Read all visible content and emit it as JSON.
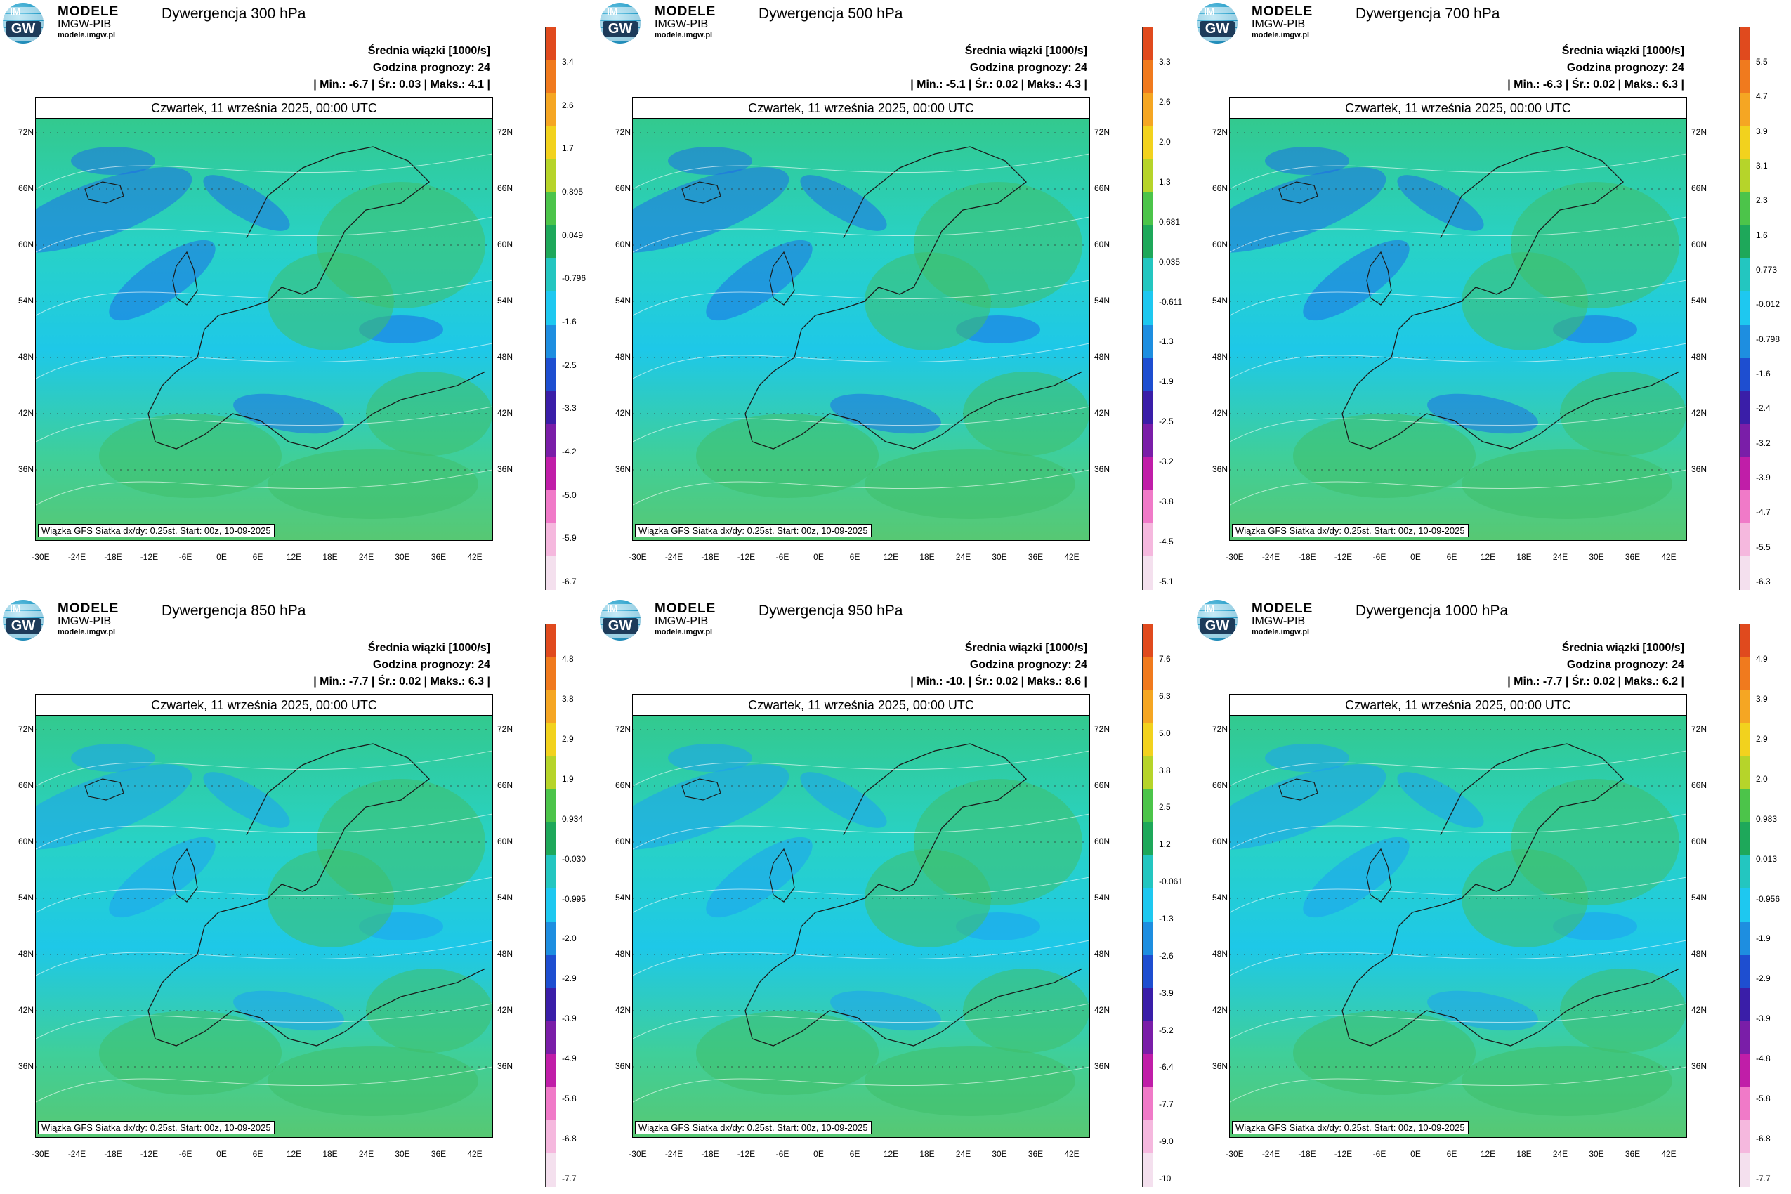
{
  "logo": {
    "line1": "MODELE",
    "line2": "IMGW-PIB",
    "line3": "modele.imgw.pl",
    "badge_top": "IM",
    "badge_bottom": "GW"
  },
  "common": {
    "subtitle": "Średnia wiązki [1000/s]",
    "forecast_hour": "Godzina prognozy: 24",
    "date": "Czwartek, 11 września 2025, 00:00 UTC",
    "footer": "Wiązka GFS Siatka dx/dy: 0.25st. Start: 00z, 10-09-2025",
    "lat_labels": [
      "72N",
      "66N",
      "60N",
      "54N",
      "48N",
      "42N",
      "36N"
    ],
    "lon_labels": [
      "-30E",
      "-24E",
      "-18E",
      "-12E",
      "-6E",
      "0E",
      "6E",
      "12E",
      "18E",
      "24E",
      "30E",
      "36E",
      "42E"
    ]
  },
  "chart_data": [
    {
      "type": "heatmap",
      "title": "Dywergencja 300 hPa",
      "stats": "| Min.: -6.7 | Śr.: 0.03 | Maks.: 4.1 |",
      "colorbar": [
        "3.4",
        "2.6",
        "1.7",
        "0.895",
        "0.049",
        "-0.796",
        "-1.6",
        "-2.5",
        "-3.3",
        "-4.2",
        "-5.0",
        "-5.9",
        "-6.7"
      ]
    },
    {
      "type": "heatmap",
      "title": "Dywergencja 500 hPa",
      "stats": "| Min.: -5.1 | Śr.: 0.02 | Maks.: 4.3 |",
      "colorbar": [
        "3.3",
        "2.6",
        "2.0",
        "1.3",
        "0.681",
        "0.035",
        "-0.611",
        "-1.3",
        "-1.9",
        "-2.5",
        "-3.2",
        "-3.8",
        "-4.5",
        "-5.1"
      ]
    },
    {
      "type": "heatmap",
      "title": "Dywergencja 700 hPa",
      "stats": "| Min.: -6.3 | Śr.: 0.02 | Maks.: 6.3 |",
      "colorbar": [
        "5.5",
        "4.7",
        "3.9",
        "3.1",
        "2.3",
        "1.6",
        "0.773",
        "-0.012",
        "-0.798",
        "-1.6",
        "-2.4",
        "-3.2",
        "-3.9",
        "-4.7",
        "-5.5",
        "-6.3"
      ]
    },
    {
      "type": "heatmap",
      "title": "Dywergencja 850 hPa",
      "stats": "| Min.: -7.7 | Śr.: 0.02 | Maks.: 6.3 |",
      "colorbar": [
        "4.8",
        "3.8",
        "2.9",
        "1.9",
        "0.934",
        "-0.030",
        "-0.995",
        "-2.0",
        "-2.9",
        "-3.9",
        "-4.9",
        "-5.8",
        "-6.8",
        "-7.7"
      ]
    },
    {
      "type": "heatmap",
      "title": "Dywergencja 950 hPa",
      "stats": "| Min.: -10. | Śr.: 0.02 | Maks.: 8.6 |",
      "colorbar": [
        "7.6",
        "6.3",
        "5.0",
        "3.8",
        "2.5",
        "1.2",
        "-0.061",
        "-1.3",
        "-2.6",
        "-3.9",
        "-5.2",
        "-6.4",
        "-7.7",
        "-9.0",
        "-10"
      ]
    },
    {
      "type": "heatmap",
      "title": "Dywergencja 1000 hPa",
      "stats": "| Min.: -7.7 | Śr.: 0.02 | Maks.: 6.2 |",
      "colorbar": [
        "4.9",
        "3.9",
        "2.9",
        "2.0",
        "0.983",
        "0.013",
        "-0.956",
        "-1.9",
        "-2.9",
        "-3.9",
        "-4.8",
        "-5.8",
        "-6.8",
        "-7.7"
      ]
    }
  ],
  "colors": [
    "#e04a1e",
    "#f07a1e",
    "#f5a623",
    "#f2d21e",
    "#b6d42a",
    "#4cc44a",
    "#1ea85a",
    "#23c6c0",
    "#1ec8f0",
    "#1e8ee0",
    "#1e4ed0",
    "#3a1ea8",
    "#7a1ea8",
    "#c01ea8",
    "#f07ac8",
    "#f5b8de",
    "#f4e0ee"
  ]
}
